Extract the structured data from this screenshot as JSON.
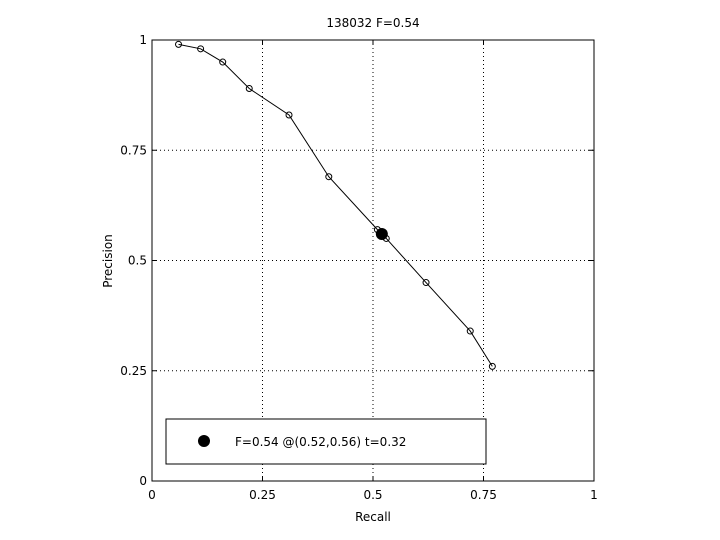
{
  "chart_data": {
    "type": "line",
    "title": "138032 F=0.54",
    "xlabel": "Recall",
    "ylabel": "Precision",
    "xlim": [
      0,
      1
    ],
    "ylim": [
      0,
      1
    ],
    "xticks": [
      0,
      0.25,
      0.5,
      0.75,
      1
    ],
    "yticks": [
      0,
      0.25,
      0.5,
      0.75,
      1
    ],
    "xtick_labels": [
      "0",
      "0.25",
      "0.5",
      "0.75",
      "1"
    ],
    "ytick_labels": [
      "0",
      "0.25",
      "0.5",
      "0.75",
      "1"
    ],
    "grid": true,
    "legend_position": "bottom-left",
    "series": [
      {
        "x": [
          0.06,
          0.11,
          0.16,
          0.22,
          0.31,
          0.4,
          0.51,
          0.53,
          0.62,
          0.72,
          0.77
        ],
        "y": [
          0.99,
          0.98,
          0.95,
          0.89,
          0.83,
          0.69,
          0.57,
          0.55,
          0.45,
          0.34,
          0.26
        ],
        "color": "#000000"
      }
    ],
    "highlight": {
      "x": 0.52,
      "y": 0.56,
      "label": "F=0.54 @(0.52,0.56) t=0.32",
      "color": "#000000"
    }
  }
}
